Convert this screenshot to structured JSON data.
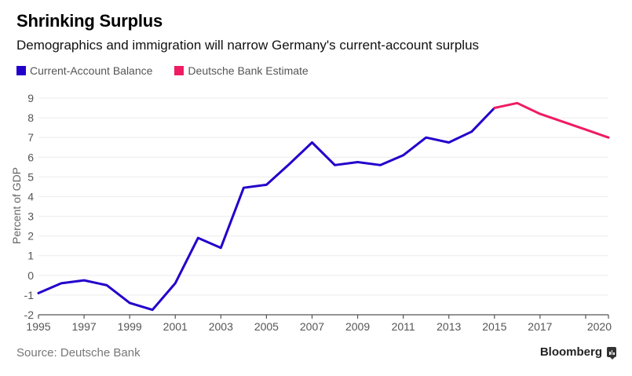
{
  "header": {
    "title": "Shrinking Surplus",
    "subtitle": "Demographics and immigration will narrow Germany's current-account surplus"
  },
  "footer": {
    "source": "Source: Deutsche Bank",
    "brand": "Bloomberg"
  },
  "chart_data": {
    "type": "line",
    "title": "Shrinking Surplus",
    "subtitle": "Demographics and immigration will narrow Germany's current-account surplus",
    "xlabel": "",
    "ylabel": "Percent of GDP",
    "xlim": [
      1995,
      2020
    ],
    "ylim": [
      -2,
      9
    ],
    "yticks": [
      -2,
      -1,
      0,
      1,
      2,
      3,
      4,
      5,
      6,
      7,
      8,
      9
    ],
    "xticks": [
      1995,
      1997,
      1999,
      2001,
      2003,
      2005,
      2007,
      2009,
      2011,
      2013,
      2015,
      2017,
      2019,
      2020
    ],
    "xtick_labels": [
      "1995",
      "1997",
      "1999",
      "2001",
      "2003",
      "2005",
      "2007",
      "2009",
      "2011",
      "2013",
      "2015",
      "2017",
      "",
      "2020"
    ],
    "grid": true,
    "legend": "top-left",
    "series": [
      {
        "name": "Current-Account Balance",
        "color": "#2200cc",
        "x": [
          1995,
          1996,
          1997,
          1998,
          1999,
          2000,
          2001,
          2002,
          2003,
          2004,
          2005,
          2006,
          2007,
          2008,
          2009,
          2010,
          2011,
          2012,
          2013,
          2014,
          2015
        ],
        "y": [
          -0.9,
          -0.4,
          -0.25,
          -0.5,
          -1.4,
          -1.75,
          -0.4,
          1.9,
          1.4,
          4.45,
          4.6,
          5.65,
          6.75,
          5.6,
          5.75,
          5.6,
          6.1,
          7.0,
          6.75,
          7.3,
          8.5
        ]
      },
      {
        "name": "Deutsche Bank Estimate",
        "color": "#f01c63",
        "x": [
          2015,
          2016,
          2017,
          2018,
          2019,
          2020
        ],
        "y": [
          8.5,
          8.75,
          8.2,
          7.8,
          7.4,
          7.0
        ]
      }
    ]
  }
}
